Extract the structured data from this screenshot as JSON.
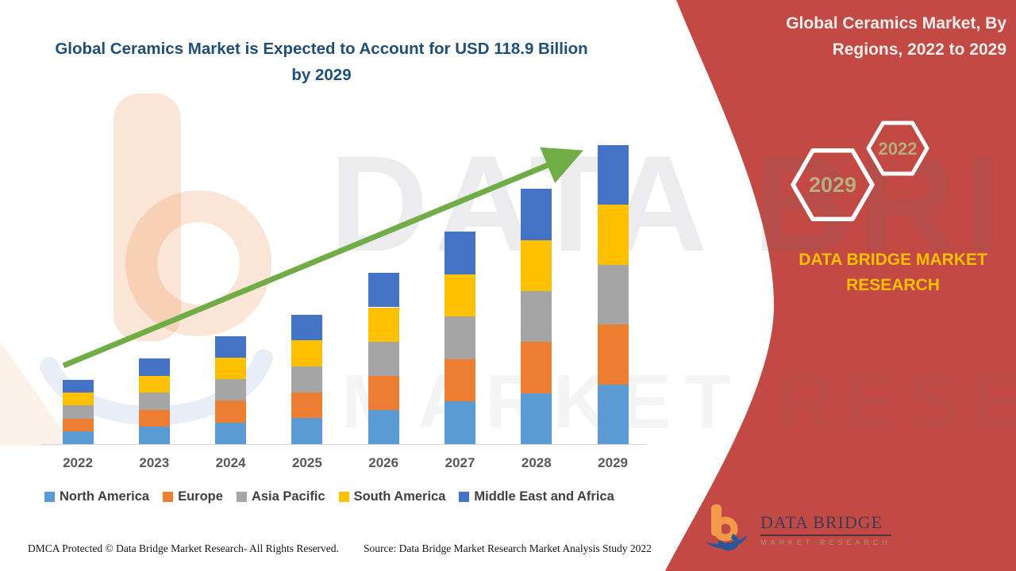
{
  "header": {
    "title": "Global Ceramics Market is Expected to Account for USD 118.9 Billion by 2029"
  },
  "right_panel": {
    "title": "Global Ceramics Market, By Regions, 2022 to 2029",
    "hexagon_back_label": "2029",
    "hexagon_front_label": "2022",
    "brand_text": "DATA BRIDGE MARKET RESEARCH",
    "logo": {
      "name": "DATA BRIDGE",
      "subtitle": "MARKET RESEARCH"
    }
  },
  "watermark": {
    "line1": "DATA BRIDGE",
    "line2": "MARKET RESEARCH"
  },
  "chart_data": {
    "type": "bar",
    "stacked": true,
    "title": "Global Ceramics Market is Expected to Account for USD 118.9 Billion by 2029",
    "unit": "USD Billion",
    "categories": [
      "2022",
      "2023",
      "2024",
      "2025",
      "2026",
      "2027",
      "2028",
      "2029"
    ],
    "series": [
      {
        "name": "North America",
        "color": "#5B9BD5",
        "values": [
          5.1,
          6.8,
          8.6,
          10.3,
          13.6,
          16.9,
          20.3,
          23.8
        ]
      },
      {
        "name": "Europe",
        "color": "#ED7D31",
        "values": [
          5.1,
          6.8,
          8.6,
          10.3,
          13.6,
          16.9,
          20.3,
          23.8
        ]
      },
      {
        "name": "Asia Pacific",
        "color": "#A5A5A5",
        "values": [
          5.1,
          6.8,
          8.6,
          10.3,
          13.6,
          16.9,
          20.3,
          23.8
        ]
      },
      {
        "name": "South America",
        "color": "#FFC000",
        "values": [
          5.1,
          6.8,
          8.6,
          10.3,
          13.6,
          16.9,
          20.3,
          23.8
        ]
      },
      {
        "name": "Middle East and Africa",
        "color": "#4472C4",
        "values": [
          5.1,
          6.8,
          8.6,
          10.3,
          13.6,
          16.9,
          20.3,
          23.8
        ]
      }
    ],
    "totals_estimated": [
      25.5,
      34.0,
      43.0,
      51.5,
      68.0,
      84.5,
      101.5,
      118.9
    ],
    "ylim": [
      0,
      125
    ],
    "y_axis_visible": false,
    "gridlines": false,
    "legend_position": "bottom",
    "trend_arrow": true,
    "trend_arrow_color": "#70AD47"
  },
  "footer": {
    "left": "DMCA Protected © Data Bridge Market Research- All Rights Reserved.",
    "source": "Source: Data Bridge Market Research Market Analysis Study 2022"
  },
  "colors": {
    "panel_red": "#C24944",
    "title_blue": "#1F4E79",
    "brand_gold": "#FFC000",
    "hexagon_label": "#B9AC7E",
    "axis_label": "#595959",
    "legend_text": "#404040"
  }
}
